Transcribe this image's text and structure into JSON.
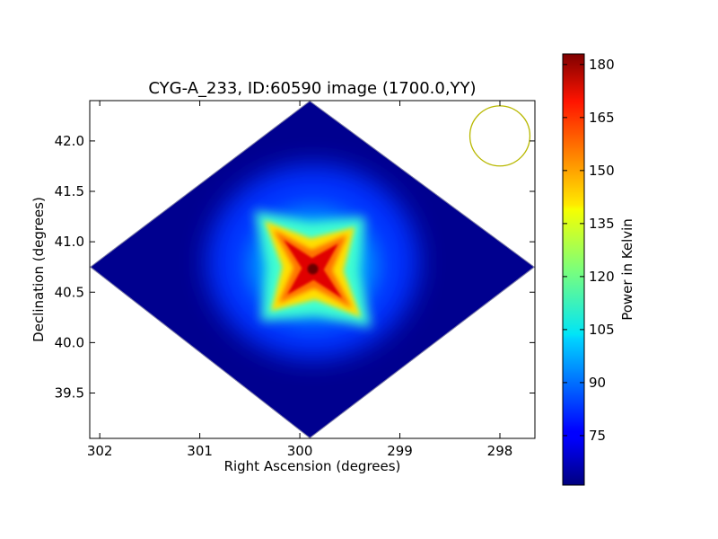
{
  "chart_data": {
    "type": "heatmap",
    "title": "CYG-A_233, ID:60590 image (1700.0,YY)",
    "xlabel": "Right Ascension (degrees)",
    "ylabel": "Declination (degrees)",
    "xlim": [
      302.1,
      297.65
    ],
    "ylim": [
      39.05,
      42.4
    ],
    "xticks": [
      302,
      301,
      300,
      299,
      298
    ],
    "yticks": [
      39.5,
      40.0,
      40.5,
      41.0,
      41.5,
      42.0
    ],
    "colorbar": {
      "label": "Power in Kelvin",
      "range": [
        61,
        183
      ],
      "ticks": [
        75,
        90,
        105,
        120,
        135,
        150,
        165,
        180
      ],
      "colormap": "jet"
    },
    "footprint": {
      "vertices": [
        [
          299.9,
          42.4
        ],
        [
          297.65,
          40.75
        ],
        [
          299.9,
          39.05
        ],
        [
          302.1,
          40.75
        ]
      ]
    },
    "source": {
      "ra": 299.87,
      "dec": 40.73,
      "peak_kelvin": 183,
      "background_kelvin": 61
    },
    "beam": {
      "ra": 298.0,
      "dec": 42.05,
      "radius_deg": 0.3,
      "color": "#b8b800"
    },
    "grid": false,
    "legend": "none"
  }
}
